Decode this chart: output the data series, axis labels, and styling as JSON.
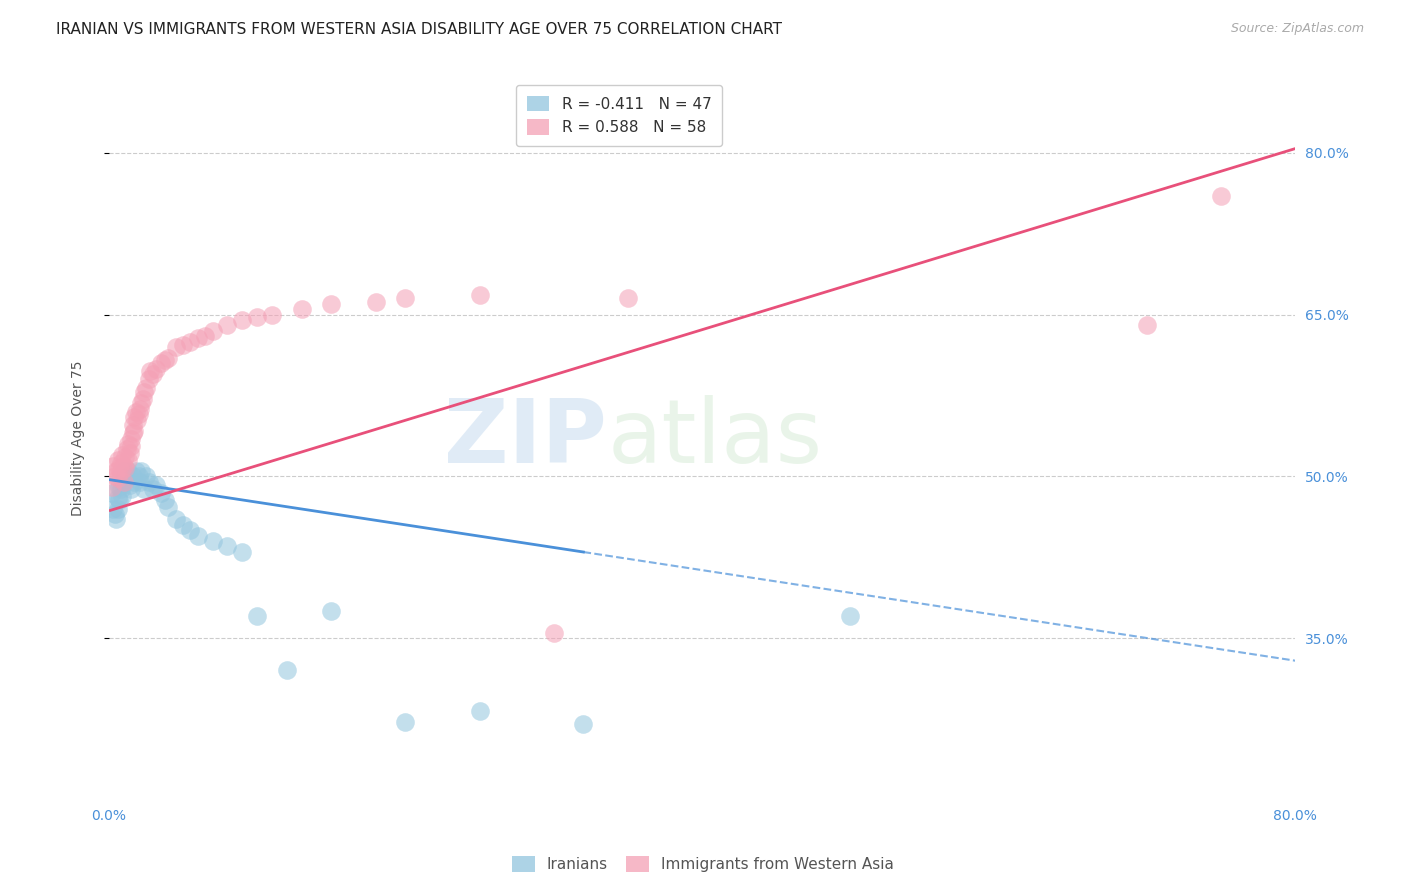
{
  "title": "IRANIAN VS IMMIGRANTS FROM WESTERN ASIA DISABILITY AGE OVER 75 CORRELATION CHART",
  "source": "Source: ZipAtlas.com",
  "ylabel": "Disability Age Over 75",
  "x_min": 0.0,
  "x_max": 0.8,
  "y_min": 0.2,
  "y_max": 0.87,
  "y_ticks": [
    0.35,
    0.5,
    0.65,
    0.8
  ],
  "y_tick_labels": [
    "35.0%",
    "50.0%",
    "65.0%",
    "80.0%"
  ],
  "x_tick_labels": [
    "0.0%",
    "80.0%"
  ],
  "legend_entries": [
    {
      "label": "R = -0.411   N = 47",
      "color": "#92c5de"
    },
    {
      "label": "R = 0.588   N = 58",
      "color": "#f4a0b5"
    }
  ],
  "watermark_zip": "ZIP",
  "watermark_atlas": "atlas",
  "iranians_color": "#92c5de",
  "western_asia_color": "#f4a0b5",
  "line_iranians_color": "#4a90d9",
  "line_western_asia_color": "#e8507a",
  "iranians_x": [
    0.002,
    0.003,
    0.004,
    0.005,
    0.006,
    0.006,
    0.007,
    0.007,
    0.008,
    0.008,
    0.009,
    0.009,
    0.01,
    0.01,
    0.011,
    0.012,
    0.013,
    0.014,
    0.015,
    0.016,
    0.017,
    0.018,
    0.02,
    0.021,
    0.022,
    0.024,
    0.025,
    0.027,
    0.03,
    0.032,
    0.035,
    0.038,
    0.04,
    0.045,
    0.05,
    0.055,
    0.06,
    0.07,
    0.08,
    0.09,
    0.1,
    0.12,
    0.15,
    0.2,
    0.25,
    0.32,
    0.5
  ],
  "iranians_y": [
    0.485,
    0.47,
    0.465,
    0.46,
    0.48,
    0.47,
    0.49,
    0.478,
    0.5,
    0.488,
    0.495,
    0.482,
    0.505,
    0.495,
    0.5,
    0.498,
    0.505,
    0.492,
    0.488,
    0.5,
    0.495,
    0.505,
    0.5,
    0.495,
    0.505,
    0.488,
    0.5,
    0.495,
    0.488,
    0.492,
    0.485,
    0.478,
    0.472,
    0.46,
    0.455,
    0.45,
    0.445,
    0.44,
    0.435,
    0.43,
    0.37,
    0.32,
    0.375,
    0.272,
    0.282,
    0.27,
    0.37
  ],
  "western_asia_x": [
    0.002,
    0.003,
    0.004,
    0.005,
    0.006,
    0.006,
    0.007,
    0.008,
    0.008,
    0.009,
    0.01,
    0.01,
    0.011,
    0.011,
    0.012,
    0.013,
    0.013,
    0.014,
    0.015,
    0.015,
    0.016,
    0.016,
    0.017,
    0.017,
    0.018,
    0.019,
    0.02,
    0.021,
    0.022,
    0.023,
    0.024,
    0.025,
    0.027,
    0.028,
    0.03,
    0.032,
    0.035,
    0.038,
    0.04,
    0.045,
    0.05,
    0.055,
    0.06,
    0.065,
    0.07,
    0.08,
    0.09,
    0.1,
    0.11,
    0.13,
    0.15,
    0.18,
    0.2,
    0.25,
    0.3,
    0.35,
    0.7,
    0.75
  ],
  "western_asia_y": [
    0.49,
    0.51,
    0.5,
    0.505,
    0.498,
    0.515,
    0.508,
    0.512,
    0.505,
    0.52,
    0.495,
    0.51,
    0.518,
    0.508,
    0.525,
    0.515,
    0.53,
    0.522,
    0.528,
    0.535,
    0.54,
    0.548,
    0.542,
    0.555,
    0.56,
    0.552,
    0.558,
    0.562,
    0.568,
    0.572,
    0.578,
    0.582,
    0.59,
    0.598,
    0.595,
    0.6,
    0.605,
    0.608,
    0.61,
    0.62,
    0.622,
    0.625,
    0.628,
    0.63,
    0.635,
    0.64,
    0.645,
    0.648,
    0.65,
    0.655,
    0.66,
    0.662,
    0.665,
    0.668,
    0.355,
    0.665,
    0.64,
    0.76
  ],
  "background_color": "#ffffff",
  "grid_color": "#cccccc",
  "title_fontsize": 11,
  "axis_label_fontsize": 10,
  "tick_fontsize": 10,
  "legend_fontsize": 11,
  "iranians_line_x_solid_end": 0.32,
  "iranians_line_intercept": 0.497,
  "iranians_line_slope": -0.21,
  "western_asia_line_intercept": 0.468,
  "western_asia_line_slope": 0.42
}
